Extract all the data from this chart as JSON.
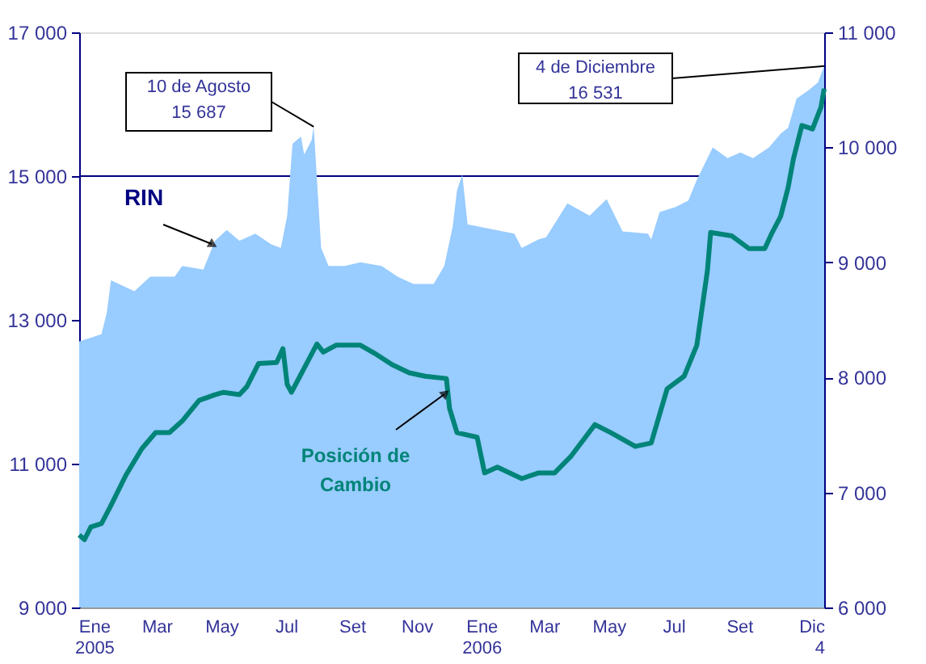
{
  "chart_data": {
    "type": "area",
    "legend": false,
    "grid": false,
    "xlim": [
      "2005-01-01",
      "2006-12-04"
    ],
    "xticks": [
      {
        "value": "2005-01-15",
        "label": "Ene\n2005"
      },
      {
        "value": "2005-03-15",
        "label": "Mar"
      },
      {
        "value": "2005-05-15",
        "label": "May"
      },
      {
        "value": "2005-07-15",
        "label": "Jul"
      },
      {
        "value": "2005-09-15",
        "label": "Set"
      },
      {
        "value": "2005-11-15",
        "label": "Nov"
      },
      {
        "value": "2006-01-15",
        "label": "Ene\n2006"
      },
      {
        "value": "2006-03-15",
        "label": "Mar"
      },
      {
        "value": "2006-05-15",
        "label": "May"
      },
      {
        "value": "2006-07-15",
        "label": "Jul"
      },
      {
        "value": "2006-09-15",
        "label": "Set"
      },
      {
        "value": "2006-12-04",
        "label": "Dic\n4"
      }
    ],
    "ylim": [
      9000,
      17000
    ],
    "yticks": [
      {
        "value": 9000,
        "label": "9 000"
      },
      {
        "value": 11000,
        "label": "11 000"
      },
      {
        "value": 13000,
        "label": "13 000"
      },
      {
        "value": 15000,
        "label": "15 000"
      },
      {
        "value": 17000,
        "label": "17 000"
      }
    ],
    "y2lim": [
      6000,
      11000
    ],
    "y2ticks": [
      {
        "value": 6000,
        "label": "6 000"
      },
      {
        "value": 7000,
        "label": "7 000"
      },
      {
        "value": 8000,
        "label": "8 000"
      },
      {
        "value": 9000,
        "label": "9 000"
      },
      {
        "value": 10000,
        "label": "10 000"
      },
      {
        "value": 11000,
        "label": "11 000"
      }
    ],
    "ref_lines": [
      {
        "axis": "y",
        "value": 15000,
        "color": "#000080"
      }
    ],
    "annotations": [
      {
        "text": "10 de Agosto\n15 687",
        "x": "2005-08-10",
        "y": 15687
      },
      {
        "text": "4 de Diciembre\n16 531",
        "x": "2006-12-04",
        "y": 16531
      }
    ],
    "series": [
      {
        "name": "RIN",
        "color": "#99ccff",
        "x": [
          "2005-01-01",
          "2005-01-22",
          "2005-01-27",
          "2005-01-31",
          "2005-02-22",
          "2005-03-09",
          "2005-04-01",
          "2005-04-08",
          "2005-04-28",
          "2005-05-09",
          "2005-05-20",
          "2005-06-01",
          "2005-06-16",
          "2005-07-01",
          "2005-07-10",
          "2005-07-16",
          "2005-07-21",
          "2005-07-29",
          "2005-08-01",
          "2005-08-08",
          "2005-08-10",
          "2005-08-17",
          "2005-08-24",
          "2005-09-08",
          "2005-09-23",
          "2005-10-13",
          "2005-10-28",
          "2005-11-12",
          "2005-12-01",
          "2005-12-11",
          "2005-12-19",
          "2005-12-23",
          "2005-12-28",
          "2006-01-02",
          "2006-02-15",
          "2006-02-22",
          "2006-03-10",
          "2006-03-17",
          "2006-04-06",
          "2006-04-27",
          "2006-05-13",
          "2006-05-28",
          "2006-06-21",
          "2006-06-24",
          "2006-07-02",
          "2006-07-17",
          "2006-07-29",
          "2006-08-06",
          "2006-08-21",
          "2006-09-04",
          "2006-09-16",
          "2006-09-28",
          "2006-10-13",
          "2006-10-24",
          "2006-10-31",
          "2006-11-08",
          "2006-11-19",
          "2006-11-28",
          "2006-12-04"
        ],
        "values": [
          12700,
          12800,
          13100,
          13550,
          13400,
          13600,
          13600,
          13750,
          13700,
          14100,
          14250,
          14100,
          14200,
          14050,
          14000,
          14450,
          15450,
          15550,
          15300,
          15500,
          15687,
          14000,
          13750,
          13750,
          13800,
          13750,
          13600,
          13500,
          13500,
          13750,
          14300,
          14800,
          15020,
          14330,
          14200,
          14000,
          14120,
          14150,
          14620,
          14450,
          14680,
          14230,
          14200,
          14120,
          14500,
          14570,
          14660,
          14950,
          15400,
          15250,
          15330,
          15250,
          15400,
          15590,
          15670,
          16080,
          16190,
          16300,
          16531
        ]
      },
      {
        "name": "Posición de Cambio",
        "type": "line",
        "axis": "y2",
        "color": "#008478",
        "x": [
          "2005-01-01",
          "2005-01-06",
          "2005-01-12",
          "2005-01-22",
          "2005-01-30",
          "2005-02-14",
          "2005-03-01",
          "2005-03-14",
          "2005-03-27",
          "2005-04-08",
          "2005-04-24",
          "2005-05-09",
          "2005-05-17",
          "2005-06-01",
          "2005-06-08",
          "2005-06-19",
          "2005-07-06",
          "2005-07-12",
          "2005-07-16",
          "2005-07-20",
          "2005-07-24",
          "2005-08-13",
          "2005-08-19",
          "2005-08-31",
          "2005-09-23",
          "2005-10-08",
          "2005-10-23",
          "2005-11-08",
          "2005-11-23",
          "2005-12-13",
          "2005-12-16",
          "2005-12-23",
          "2006-01-11",
          "2006-01-18",
          "2006-01-30",
          "2006-02-22",
          "2006-03-10",
          "2006-03-25",
          "2006-04-09",
          "2006-05-02",
          "2006-05-17",
          "2006-06-09",
          "2006-06-24",
          "2006-07-09",
          "2006-07-25",
          "2006-08-06",
          "2006-08-16",
          "2006-08-19",
          "2006-09-08",
          "2006-09-24",
          "2006-10-09",
          "2006-10-16",
          "2006-10-24",
          "2006-10-31",
          "2006-11-05",
          "2006-11-13",
          "2006-11-23",
          "2006-12-01",
          "2006-12-04"
        ],
        "values": [
          6630,
          6590,
          6700,
          6730,
          6870,
          7150,
          7380,
          7520,
          7520,
          7620,
          7800,
          7850,
          7870,
          7850,
          7920,
          8120,
          8130,
          8250,
          7940,
          7870,
          7940,
          8290,
          8220,
          8280,
          8280,
          8200,
          8110,
          8040,
          8010,
          7990,
          7730,
          7520,
          7480,
          7170,
          7220,
          7120,
          7170,
          7170,
          7310,
          7590,
          7520,
          7400,
          7430,
          7900,
          8010,
          8280,
          8930,
          9260,
          9230,
          9120,
          9120,
          9260,
          9400,
          9650,
          9900,
          10190,
          10160,
          10350,
          10510
        ]
      }
    ]
  }
}
